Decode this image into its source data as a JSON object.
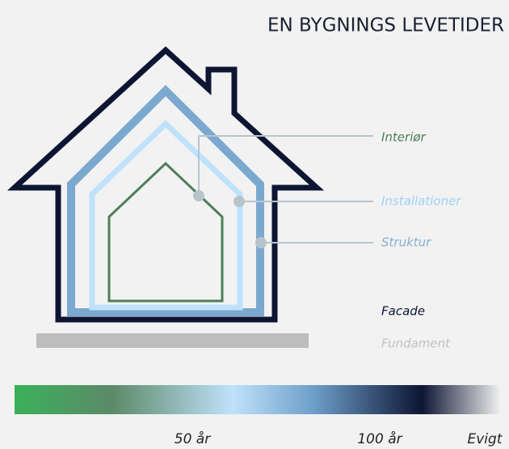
{
  "header": {
    "title": "EN BYGNINGS LEVETIDER"
  },
  "layers": [
    {
      "label": "Interiør"
    },
    {
      "label": "Installationer"
    },
    {
      "label": "Struktur"
    },
    {
      "label": "Facade"
    },
    {
      "label": "Fundament"
    }
  ],
  "scale": {
    "labels": [
      "50 år",
      "100 år",
      "Evigt"
    ]
  }
}
